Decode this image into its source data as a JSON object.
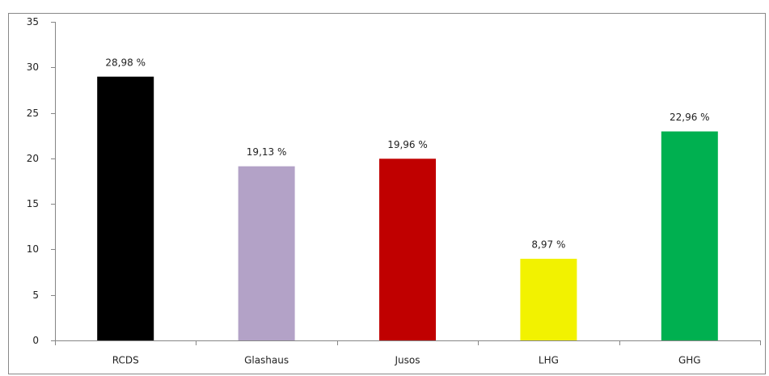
{
  "chart_data": {
    "type": "bar",
    "categories": [
      "RCDS",
      "Glashaus",
      "Jusos",
      "LHG",
      "GHG"
    ],
    "values": [
      28.98,
      19.13,
      19.96,
      8.97,
      22.96
    ],
    "value_labels": [
      "28,98 %",
      "19,13 %",
      "19,96 %",
      "8,97 %",
      "22,96 %"
    ],
    "colors": [
      "#000000",
      "#b3a2c7",
      "#c00000",
      "#f2f200",
      "#00b050"
    ],
    "ylim": [
      0,
      35
    ],
    "yticks": [
      0,
      5,
      10,
      15,
      20,
      25,
      30,
      35
    ],
    "grid": false
  }
}
